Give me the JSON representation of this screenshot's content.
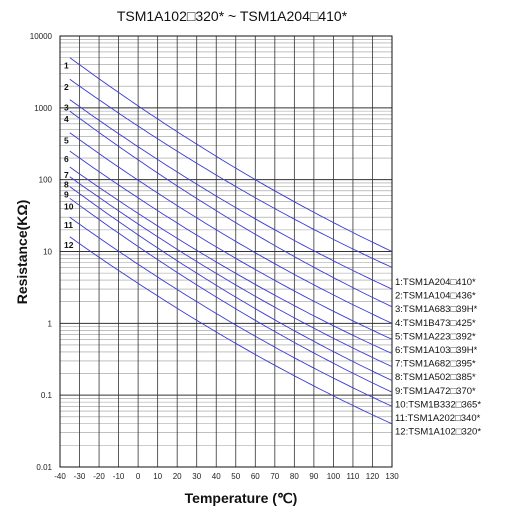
{
  "chart_data": {
    "type": "line",
    "title": "TSM1A102□320* ~ TSM1A204□410*",
    "xlabel": "Temperature (℃)",
    "ylabel": "Resistance(KΩ)",
    "x_ticks": [
      "-40",
      "-30",
      "-20",
      "-10",
      "0",
      "10",
      "20",
      "30",
      "40",
      "50",
      "60",
      "70",
      "80",
      "90",
      "100",
      "110",
      "120",
      "130"
    ],
    "y_ticks": [
      "0.01",
      "0.1",
      "1",
      "10",
      "100",
      "1000",
      "10000"
    ],
    "xlim": [
      -40,
      130
    ],
    "ylim": [
      0.01,
      10000
    ],
    "y_scale": "log",
    "grid": true,
    "line_color": "#3a3ad6",
    "legend_position": "right",
    "x": [
      -35,
      130
    ],
    "series": [
      {
        "name": "1:TSM1A204□410*",
        "label": "1",
        "values": [
          5000,
          10
        ]
      },
      {
        "name": "2:TSM1A104□436*",
        "label": "2",
        "values": [
          2500,
          6
        ]
      },
      {
        "name": "3:TSM1A683□39H*",
        "label": "3",
        "values": [
          1300,
          3
        ]
      },
      {
        "name": "4:TSM1B473□425*",
        "label": "4",
        "values": [
          900,
          1.7
        ]
      },
      {
        "name": "5:TSM1A223□392*",
        "label": "5",
        "values": [
          450,
          1
        ]
      },
      {
        "name": "6:TSM1A103□39H*",
        "label": "6",
        "values": [
          250,
          0.6
        ]
      },
      {
        "name": "7:TSM1A682□395*",
        "label": "7",
        "values": [
          150,
          0.38
        ]
      },
      {
        "name": "8:TSM1A502□385*",
        "label": "8",
        "values": [
          110,
          0.25
        ]
      },
      {
        "name": "9:TSM1A472□370*",
        "label": "9",
        "values": [
          80,
          0.16
        ]
      },
      {
        "name": "10:TSM1B332□365*",
        "label": "10",
        "values": [
          55,
          0.11
        ]
      },
      {
        "name": "11:TSM1A202□340*",
        "label": "11",
        "values": [
          30,
          0.07
        ]
      },
      {
        "name": "12:TSM1A102□320*",
        "label": "12",
        "values": [
          16,
          0.04
        ]
      }
    ]
  }
}
